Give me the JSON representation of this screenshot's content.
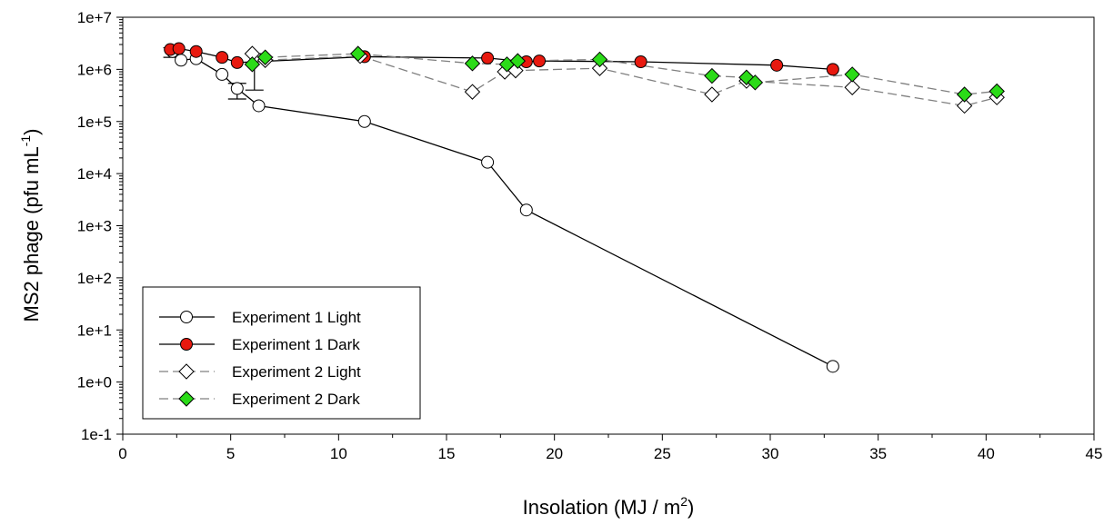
{
  "chart_data": {
    "type": "line",
    "xlabel": "Insolation (MJ / m",
    "xlabel_sup": "2",
    "xlabel_tail": ")",
    "ylabel": "MS2 phage (pfu mL",
    "ylabel_sup": "-1",
    "ylabel_tail": ")",
    "xlim": [
      0,
      45
    ],
    "ylim_log10": [
      -1,
      7
    ],
    "y_scale": "log",
    "x_ticks": [
      "0",
      "5",
      "10",
      "15",
      "20",
      "25",
      "30",
      "35",
      "40",
      "45"
    ],
    "y_ticks": [
      "1e-1",
      "1e+0",
      "1e+1",
      "1e+2",
      "1e+3",
      "1e+4",
      "1e+5",
      "1e+6",
      "1e+7"
    ],
    "grid": false,
    "legend_position": "bottom-left",
    "series": [
      {
        "name": "Experiment 1 Light",
        "marker": "circle",
        "fill": "#ffffff",
        "line": "#000000",
        "dashed": false,
        "x": [
          2.3,
          2.7,
          3.4,
          4.6,
          5.3,
          6.3,
          11.2,
          16.9,
          18.7,
          32.9
        ],
        "y": [
          2200000,
          1500000,
          1600000,
          800000,
          430000,
          200000,
          100000,
          16500,
          2000,
          2
        ]
      },
      {
        "name": "Experiment 1 Dark",
        "marker": "circle",
        "fill": "#e8190f",
        "line": "#000000",
        "dashed": false,
        "x": [
          2.2,
          2.6,
          3.4,
          4.6,
          5.3,
          11.2,
          16.9,
          18.7,
          19.3,
          24.0,
          30.3,
          32.9
        ],
        "y": [
          2400000,
          2500000,
          2200000,
          1700000,
          1350000,
          1750000,
          1650000,
          1400000,
          1450000,
          1400000,
          1200000,
          1000000
        ]
      },
      {
        "name": "Experiment 2 Light",
        "marker": "diamond",
        "fill": "#ffffff",
        "line": "#808080",
        "dashed": true,
        "x": [
          6.0,
          6.6,
          11.0,
          16.2,
          17.7,
          18.2,
          22.1,
          27.3,
          28.9,
          33.8,
          39.0,
          40.5
        ],
        "y": [
          2000000,
          1500000,
          1800000,
          370000,
          900000,
          950000,
          1050000,
          330000,
          600000,
          450000,
          200000,
          290000
        ]
      },
      {
        "name": "Experiment 2 Dark",
        "marker": "diamond",
        "fill": "#2bdb18",
        "line": "#808080",
        "dashed": true,
        "x": [
          6.0,
          6.6,
          10.9,
          16.2,
          17.8,
          18.3,
          22.1,
          27.3,
          28.9,
          29.3,
          33.8,
          39.0,
          40.5
        ],
        "y": [
          1250000,
          1700000,
          2000000,
          1300000,
          1250000,
          1450000,
          1550000,
          750000,
          700000,
          560000,
          800000,
          330000,
          380000
        ]
      }
    ],
    "error_bars": [
      {
        "x": 2.3,
        "y_low": 1700000,
        "y_high": 2600000
      },
      {
        "x": 5.3,
        "y_low": 270000,
        "y_high": 540000
      },
      {
        "x": 6.1,
        "y_low": 400000,
        "y_high": 2000000
      }
    ]
  }
}
